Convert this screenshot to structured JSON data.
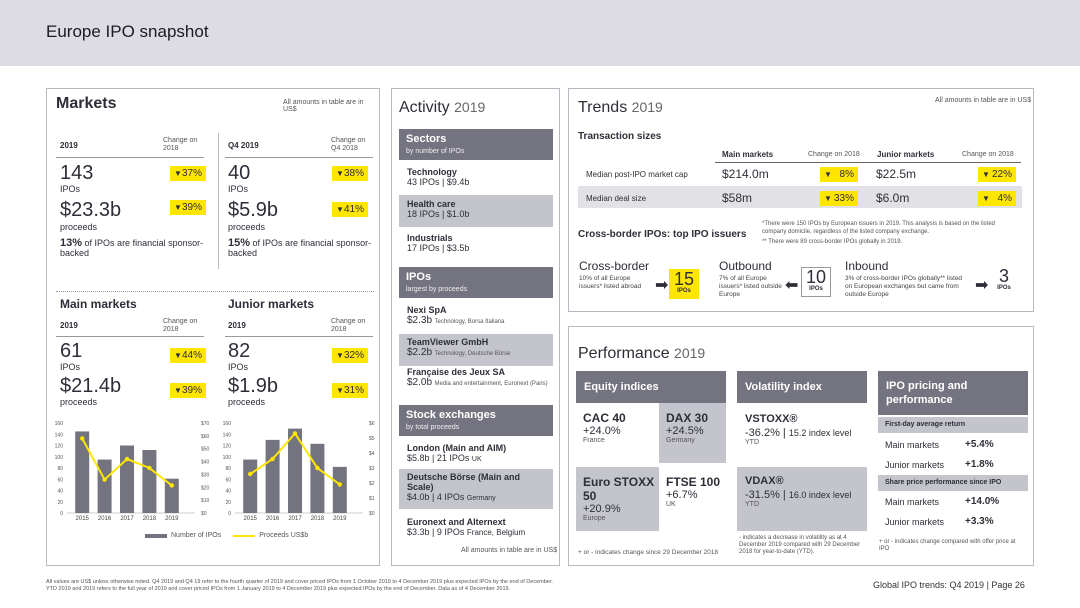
{
  "page_title": "Europe IPO snapshot",
  "markets": {
    "title": "Markets",
    "note": "All amounts in table are in US$",
    "y2019": "2019",
    "change_on_2018": "Change on 2018",
    "q4": "Q4 2019",
    "change_on_q4": "Change on Q4 2018",
    "ipos_2019": "143",
    "ipos_label": "IPOs",
    "ipos_2019_chg": "37%",
    "proceeds_2019": "$23.3b",
    "proceeds_label": "proceeds",
    "proceeds_2019_chg": "39%",
    "fin_2019_pct": "13%",
    "fin_2019_text": "of IPOs are financial sponsor-backed",
    "ipos_q4": "40",
    "ipos_q4_chg": "38%",
    "proceeds_q4": "$5.9b",
    "proceeds_q4_chg": "41%",
    "fin_q4_pct": "15%",
    "fin_q4_text": "of IPOs are financial sponsor-backed",
    "main_title": "Main markets",
    "junior_title": "Junior markets",
    "main_ipos": "61",
    "main_ipos_chg": "44%",
    "main_proceeds": "$21.4b",
    "main_proceeds_chg": "39%",
    "jr_ipos": "82",
    "jr_ipos_chg": "32%",
    "jr_proceeds": "$1.9b",
    "jr_proceeds_chg": "31%"
  },
  "chart_data": [
    {
      "type": "bar",
      "title": "Main markets",
      "categories": [
        "2015",
        "2016",
        "2017",
        "2018",
        "2019"
      ],
      "series": [
        {
          "name": "Number of IPOs",
          "values": [
            145,
            95,
            120,
            112,
            61
          ],
          "axis": "left"
        },
        {
          "name": "Proceeds US$b",
          "values": [
            58,
            26,
            42,
            35,
            21.4
          ],
          "axis": "right"
        }
      ],
      "y_left_ticks": [
        "160",
        "140",
        "120",
        "100",
        "80",
        "60",
        "40",
        "20",
        "0"
      ],
      "y_right_ticks": [
        "$70",
        "$60",
        "$50",
        "$40",
        "$30",
        "$20",
        "$10",
        "$0"
      ],
      "ylim_left": [
        0,
        160
      ],
      "ylim_right": [
        0,
        70
      ]
    },
    {
      "type": "bar",
      "title": "Junior markets",
      "categories": [
        "2015",
        "2016",
        "2017",
        "2018",
        "2019"
      ],
      "series": [
        {
          "name": "Number of IPOs",
          "values": [
            95,
            130,
            150,
            123,
            82
          ],
          "axis": "left"
        },
        {
          "name": "Proceeds US$b",
          "values": [
            2.6,
            3.6,
            5.3,
            3.0,
            1.9
          ],
          "axis": "right"
        }
      ],
      "y_left_ticks": [
        "160",
        "140",
        "120",
        "100",
        "80",
        "60",
        "40",
        "20",
        "0"
      ],
      "y_right_ticks": [
        "$6",
        "$5",
        "$4",
        "$3",
        "$2",
        "$1",
        "$0"
      ],
      "ylim_left": [
        0,
        160
      ],
      "ylim_right": [
        0,
        6
      ]
    }
  ],
  "legend": {
    "bars": "Number of IPOs",
    "line": "Proceeds US$b"
  },
  "activity": {
    "title": "Activity",
    "year": "2019",
    "sectors_head": "Sectors",
    "sectors_sub": "by number of IPOs",
    "sectors": [
      {
        "name": "Technology",
        "val": "43 IPOs | $9.4b"
      },
      {
        "name": "Health care",
        "val": "18 IPOs | $1.0b"
      },
      {
        "name": "Industrials",
        "val": "17 IPOs | $3.5b"
      }
    ],
    "ipos_head": "IPOs",
    "ipos_sub": "largest by proceeds",
    "ipos": [
      {
        "name": "Nexi SpA",
        "amt": "$2.3b",
        "desc": "Technology, Borsa Italiana"
      },
      {
        "name": "TeamViewer GmbH",
        "amt": "$2.2b",
        "desc": "Technology, Deutsche Börse"
      },
      {
        "name": "Française des Jeux SA",
        "amt": "$2.0b",
        "desc": "Media and entertainment, Euronext (Paris)"
      }
    ],
    "ex_head": "Stock exchanges",
    "ex_sub": "by total proceeds",
    "exchanges": [
      {
        "name": "London (Main and AIM)",
        "val": "$5.8b | 21 IPOs",
        "extra": "UK"
      },
      {
        "name": "Deutsche Börse (Main and Scale)",
        "val": "$4.0b | 4 IPOs",
        "extra": "Germany"
      },
      {
        "name": "Euronext and Alternext",
        "val": "$3.3b | 9 IPOs",
        "extra": "France, Belgium"
      }
    ],
    "note": "All amounts in table are in US$"
  },
  "trends": {
    "title": "Trends",
    "year": "2019",
    "note": "All amounts in table are in US$",
    "tx_title": "Transaction sizes",
    "main": "Main markets",
    "change": "Change on 2018",
    "junior": "Junior markets",
    "r1_label": "Median post-IPO market cap",
    "r1_main": "$214.0m",
    "r1_main_chg": "8%",
    "r1_jr": "$22.5m",
    "r1_jr_chg": "22%",
    "r2_label": "Median deal size",
    "r2_main": "$58m",
    "r2_main_chg": "33%",
    "r2_jr": "$6.0m",
    "r2_jr_chg": "4%",
    "cross_title": "Cross-border IPOs: top IPO issuers",
    "fn1": "*There were 150 IPOs by European issuers in 2019. This analysis is based on the listed company domicile, regardless of the listed company exchange.",
    "fn2": "** There were 89 cross-border IPOs globally in 2019.",
    "cb_title": "Cross-border",
    "cb_text": "10% of all Europe issuers* listed abroad",
    "cb_num": "15",
    "ipos": "IPOs",
    "out_title": "Outbound",
    "out_text": "7% of all Europe issuers* listed outside Europe",
    "out_num": "10",
    "in_title": "Inbound",
    "in_text": "3% of cross-border IPOs globally** listed on European exchanges but came from outside Europe",
    "in_num": "3"
  },
  "perf": {
    "title": "Performance",
    "year": "2019",
    "eq_head": "Equity indices",
    "vol_head": "Volatility index",
    "ipo_head": "IPO pricing and performance",
    "cac_name": "CAC 40",
    "cac_val": "+24.0%",
    "cac_c": "France",
    "dax_name": "DAX 30",
    "dax_val": "+24.5%",
    "dax_c": "Germany",
    "euro_name": "Euro STOXX 50",
    "euro_val": "+20.9%",
    "euro_c": "Europe",
    "ftse_name": "FTSE 100",
    "ftse_val": "+6.7%",
    "ftse_c": "UK",
    "eq_note": "+ or - indicates change since 29 December 2018",
    "vstoxx": "VSTOXX®",
    "vstoxx_val": "-36.2%",
    "vstoxx_lvl": "15.2 index level",
    "ytd": "YTD",
    "vdax": "VDAX®",
    "vdax_val": "-31.5%",
    "vdax_lvl": "16.0 index level",
    "vol_note": "- indicates a decrease in volatility as at 4 December 2019 compared with 29 December 2018 for year-to-date (YTD).",
    "fda": "First-day average return",
    "main": "Main markets",
    "main_fda": "+5.4%",
    "jr": "Junior markets",
    "jr_fda": "+1.8%",
    "spp": "Share price performance since IPO",
    "main_spp": "+14.0%",
    "jr_spp": "+3.3%",
    "ipo_note": "+ or - indicates change compared with offer price at IPO"
  },
  "footer": {
    "left1": "All values are US$ unless otherwise noted. Q4 2019 and Q4 19 refer to the fourth quarter of 2019 and cover priced IPOs from 1 October 2019 to 4 December 2019 plus expected IPOs by the end of December.",
    "left2": "YTD 2019 and 2019 refers to the full year of 2019 and cover priced IPOs from 1 January 2019 to 4 December 2019 plus expected IPOs by the end of December. Data as of 4 December 2019.",
    "right": "Global IPO trends: Q4 2019 | Page 26"
  },
  "colors": {
    "yellow": "#ffe600",
    "dark": "#747480",
    "bar": "#747480"
  }
}
